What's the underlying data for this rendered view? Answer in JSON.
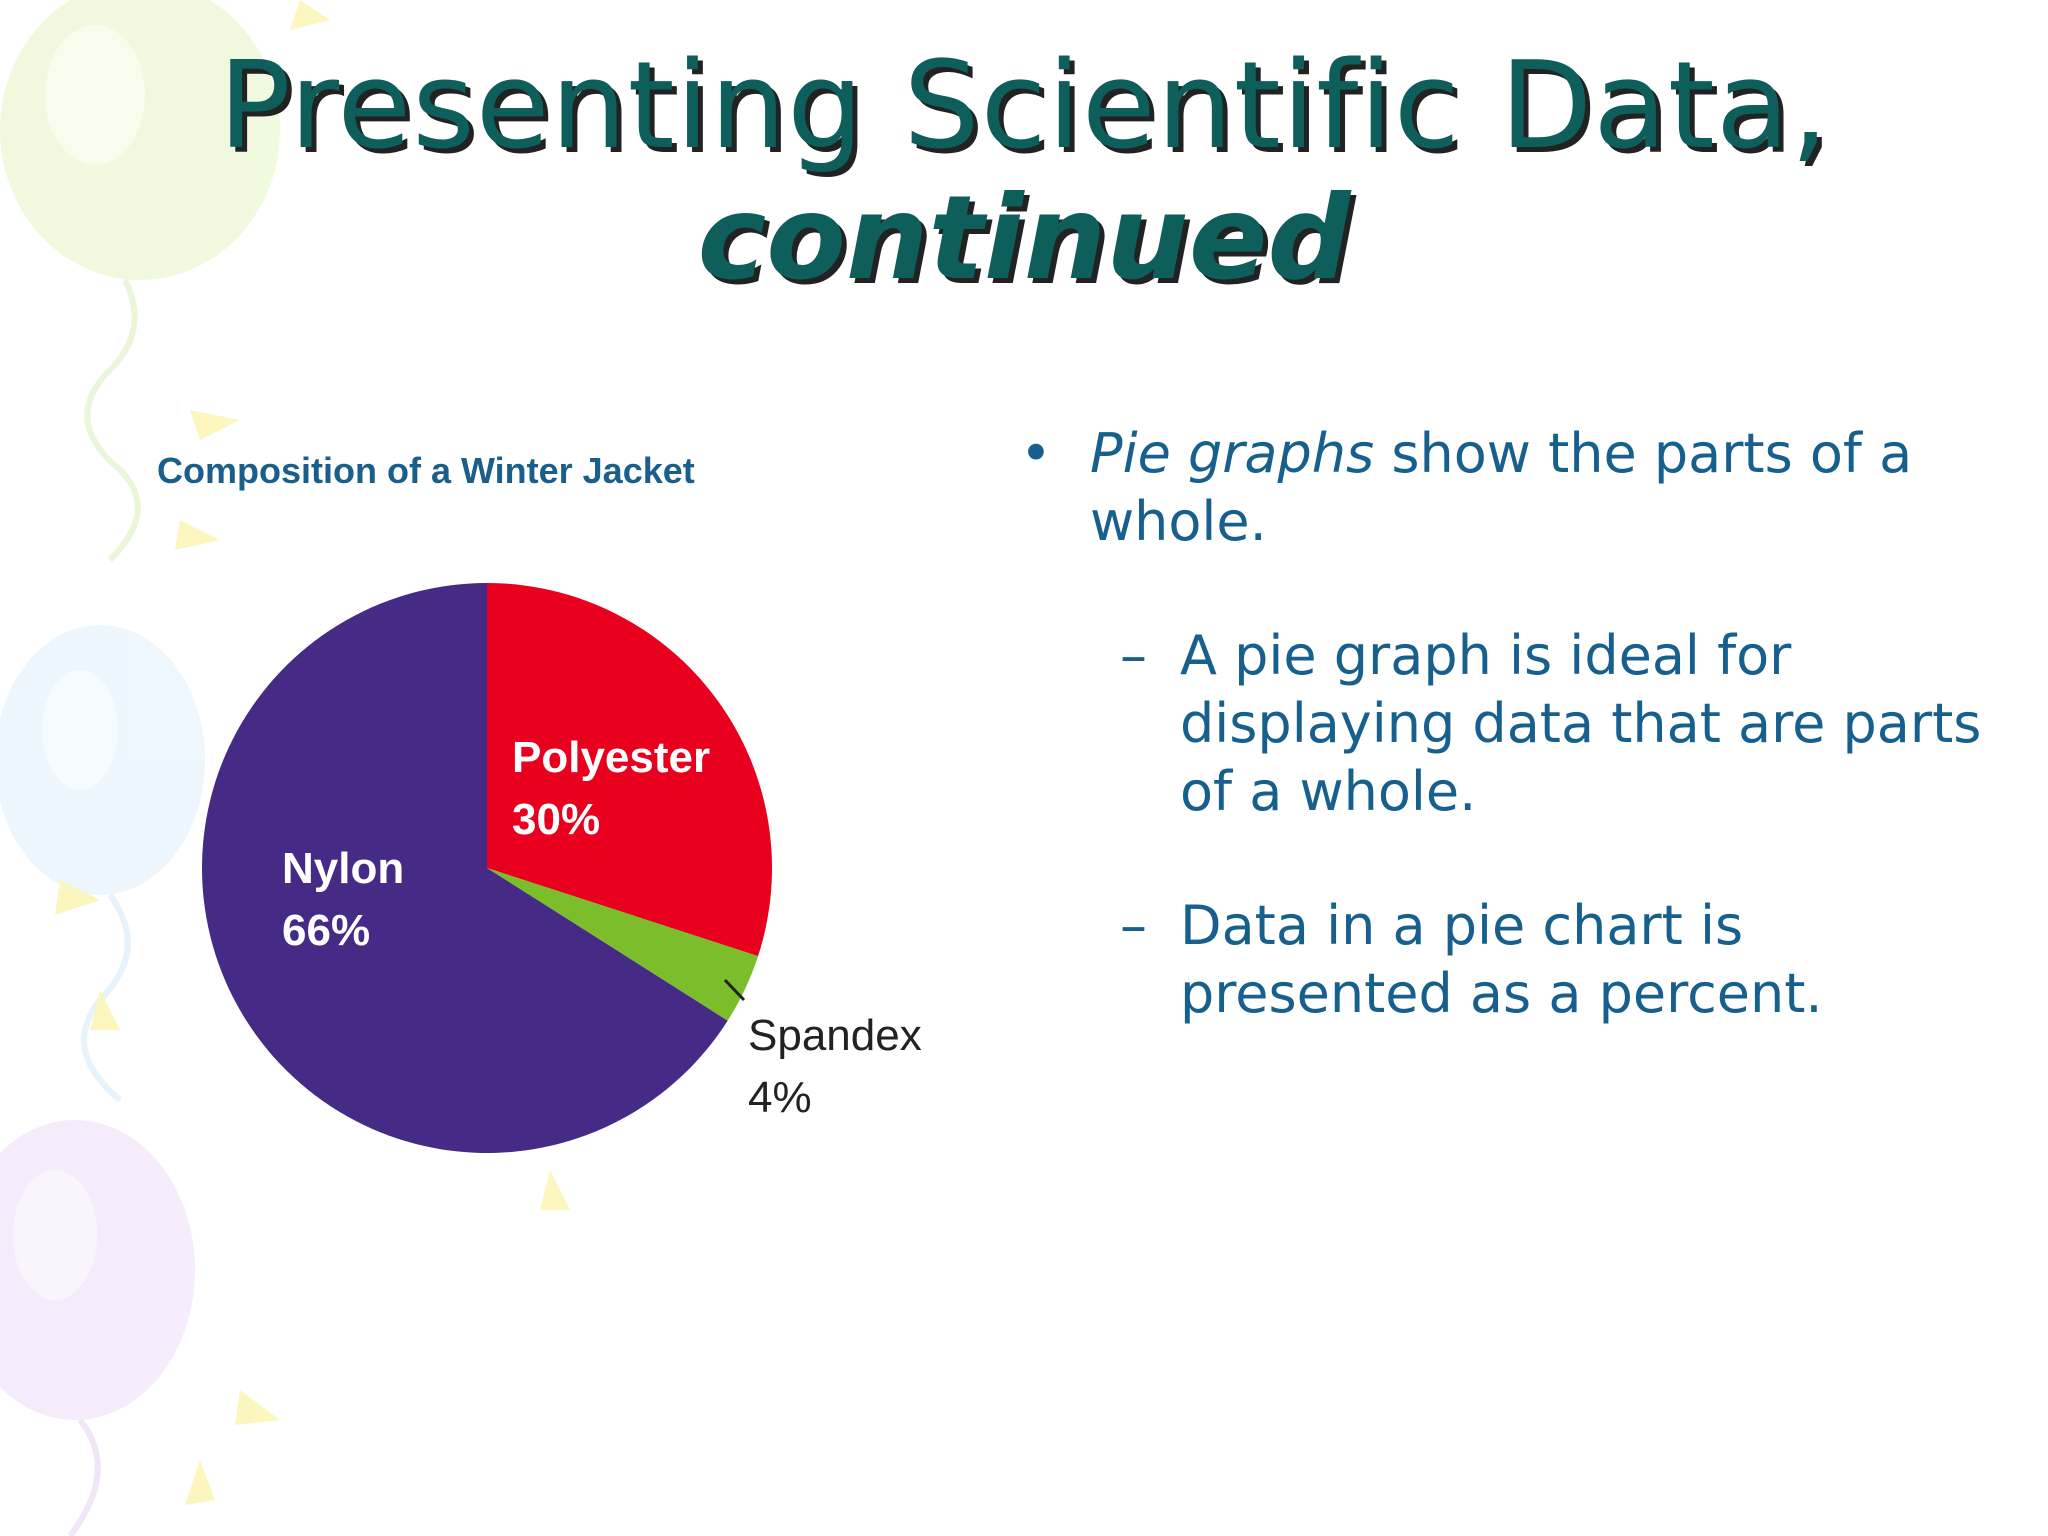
{
  "slide": {
    "title_line1": "Presenting Scientific Data,",
    "title_line2": "continued"
  },
  "text_content": {
    "bullet": {
      "marker": "•",
      "emphasis": "Pie graphs",
      "rest": " show the parts of a whole."
    },
    "sub_bullets": [
      {
        "marker": "–",
        "text": "A pie graph is ideal for displaying data that are parts of a whole."
      },
      {
        "marker": "–",
        "text": "Data in a pie chart is presented as a percent."
      }
    ]
  },
  "chart_data": {
    "type": "pie",
    "title": "Composition of a Winter Jacket",
    "slices": [
      {
        "name": "Polyester",
        "value": 30,
        "label": "30%",
        "color": "#e8001e"
      },
      {
        "name": "Spandex",
        "value": 4,
        "label": "4%",
        "color": "#7cbd2c"
      },
      {
        "name": "Nylon",
        "value": 66,
        "label": "66%",
        "color": "#452b85"
      }
    ],
    "start": "12 o'clock",
    "direction": "clockwise"
  },
  "colors": {
    "title": "#0e5e5c",
    "body_text": "#17608d",
    "chart_title": "#1a5f8c"
  }
}
